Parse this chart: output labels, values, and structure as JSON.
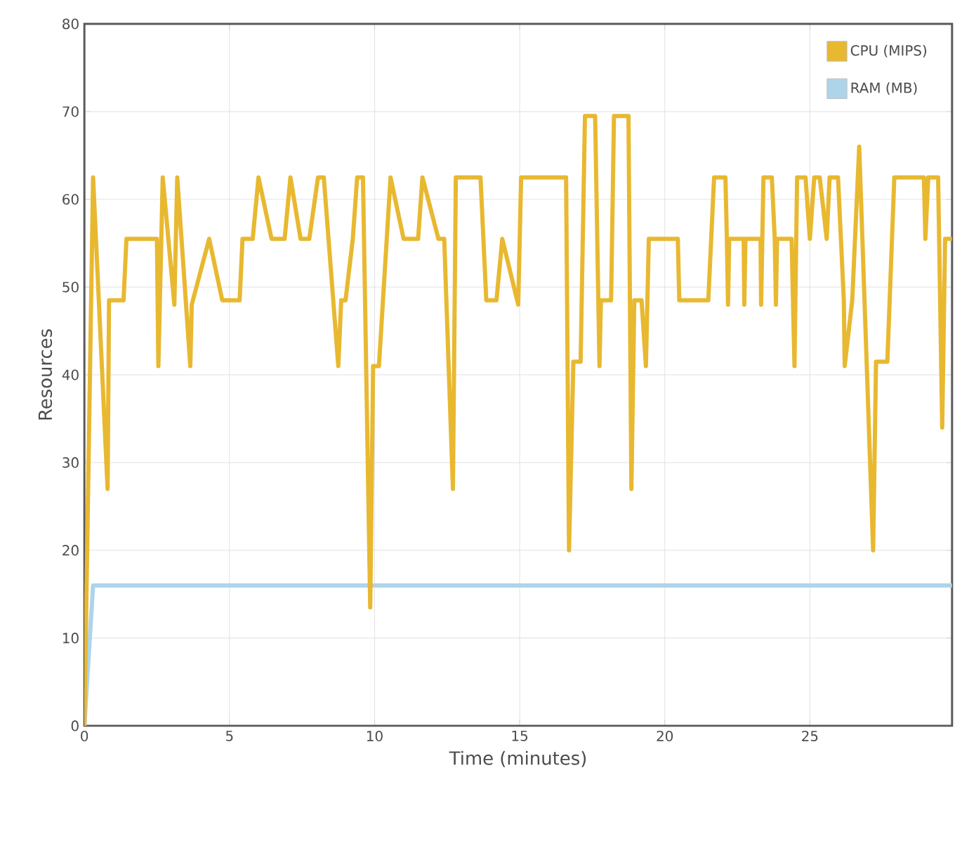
{
  "chart_data": {
    "type": "line",
    "xlabel": "Time (minutes)",
    "ylabel": "Resources",
    "xlim": [
      0,
      29.9
    ],
    "ylim": [
      0,
      80
    ],
    "xticks": [
      0,
      5,
      10,
      15,
      20,
      25
    ],
    "yticks": [
      0,
      10,
      20,
      30,
      40,
      50,
      60,
      70,
      80
    ],
    "grid": true,
    "legend": "top right",
    "marker": "none",
    "series": [
      {
        "name": "CPU (MIPS)",
        "color": "#e8b830",
        "x": [
          0,
          0.3,
          0.8,
          0.85,
          1.35,
          1.45,
          2.5,
          2.55,
          2.7,
          3.1,
          3.2,
          3.65,
          3.7,
          4.3,
          4.75,
          5.35,
          5.45,
          5.8,
          6.0,
          6.45,
          6.9,
          7.1,
          7.45,
          7.75,
          8.05,
          8.25,
          8.75,
          8.85,
          9.0,
          9.25,
          9.4,
          9.6,
          9.85,
          9.95,
          10.15,
          10.55,
          11.0,
          11.5,
          11.65,
          12.2,
          12.4,
          12.7,
          12.8,
          13.65,
          13.85,
          14.2,
          14.4,
          14.95,
          15.05,
          16.6,
          16.7,
          16.85,
          17.1,
          17.25,
          17.6,
          17.75,
          17.8,
          18.15,
          18.25,
          18.75,
          18.85,
          18.95,
          19.2,
          19.35,
          19.45,
          20.45,
          20.5,
          21.5,
          21.7,
          22.09,
          22.14,
          22.18,
          22.22,
          22.72,
          22.74,
          22.78,
          23.3,
          23.32,
          23.4,
          23.69,
          23.79,
          23.83,
          23.87,
          24.37,
          24.47,
          24.56,
          24.85,
          25.0,
          25.15,
          25.34,
          25.58,
          25.68,
          25.97,
          26.17,
          26.2,
          26.46,
          26.7,
          27.18,
          27.28,
          27.67,
          27.91,
          28.93,
          28.98,
          29.08,
          29.42,
          29.56,
          29.66,
          29.9
        ],
        "values": [
          0,
          62.5,
          27,
          48.5,
          48.5,
          55.5,
          55.5,
          41,
          62.5,
          48,
          62.5,
          41,
          48,
          55.5,
          48.5,
          48.5,
          55.5,
          55.5,
          62.5,
          55.5,
          55.5,
          62.5,
          55.5,
          55.5,
          62.5,
          62.5,
          41,
          48.5,
          48.5,
          55.5,
          62.5,
          62.5,
          13.5,
          41,
          41,
          62.5,
          55.5,
          55.5,
          62.5,
          55.5,
          55.5,
          27,
          62.5,
          62.5,
          48.5,
          48.5,
          55.5,
          48,
          62.5,
          62.5,
          20,
          41.5,
          41.5,
          69.5,
          69.5,
          41,
          48.5,
          48.5,
          69.5,
          69.5,
          27,
          48.5,
          48.5,
          41,
          55.5,
          55.5,
          48.5,
          48.5,
          62.5,
          62.5,
          55.5,
          48,
          55.5,
          55.5,
          48,
          55.5,
          55.5,
          48,
          62.5,
          62.5,
          55.5,
          48,
          55.5,
          55.5,
          41,
          62.5,
          62.5,
          55.5,
          62.5,
          62.5,
          55.5,
          62.5,
          62.5,
          48.5,
          41,
          48.5,
          66,
          20,
          41.5,
          41.5,
          62.5,
          62.5,
          55.5,
          62.5,
          62.5,
          34,
          55.5,
          55.5
        ]
      },
      {
        "name": "RAM (MB)",
        "color": "#aed4ea",
        "x": [
          0,
          0.3,
          29.9
        ],
        "values": [
          0,
          16,
          16
        ]
      }
    ]
  }
}
